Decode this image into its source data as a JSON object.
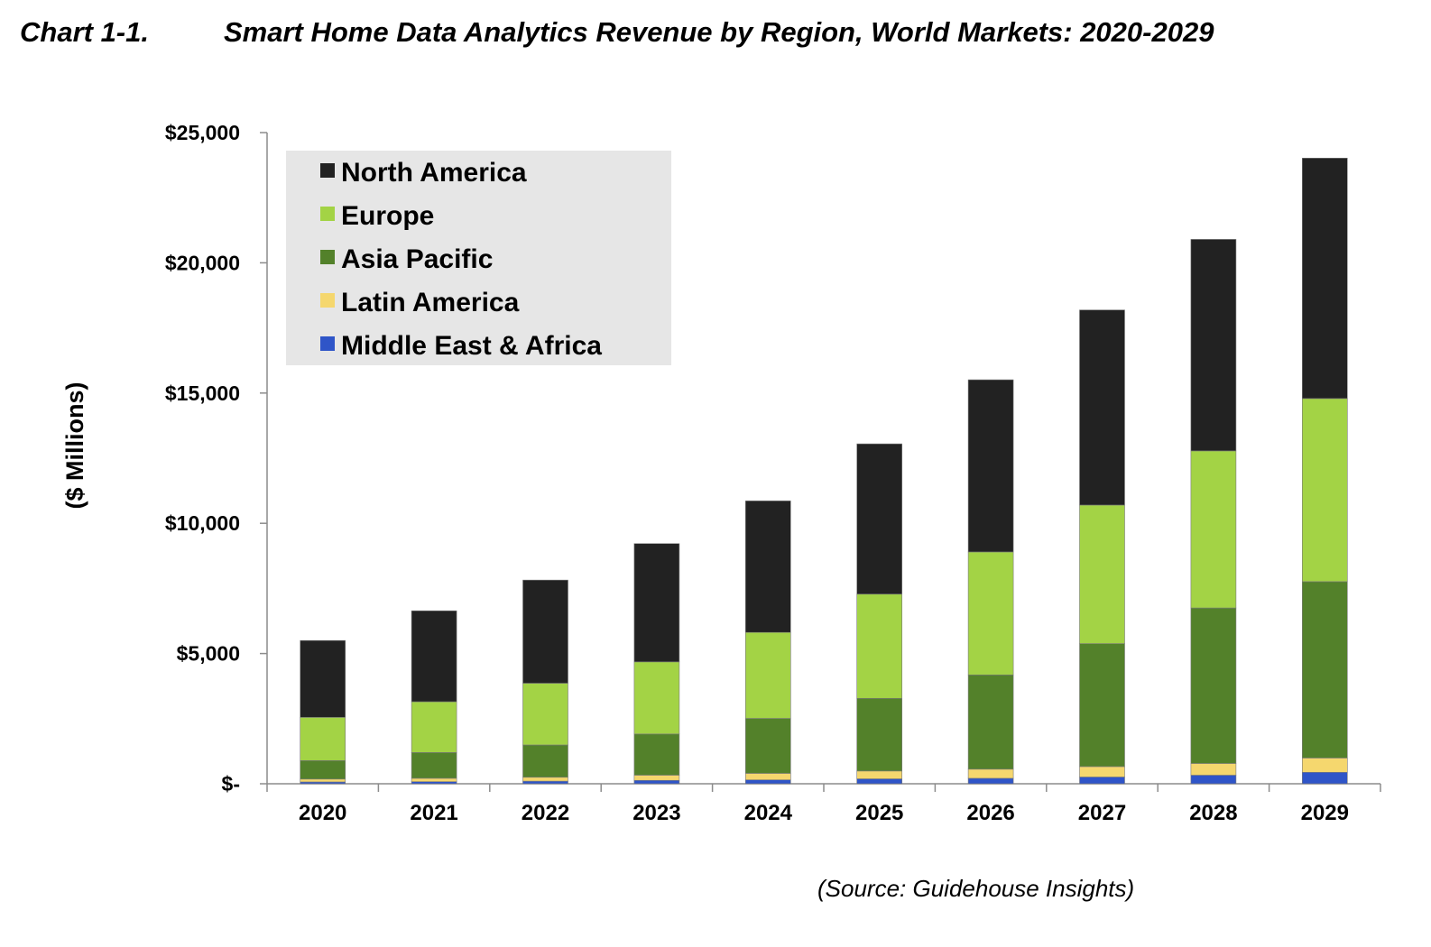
{
  "header": {
    "chart_label": "Chart 1-1.",
    "title": "Smart Home Data Analytics Revenue by Region, World Markets: 2020-2029"
  },
  "footer": {
    "source": "(Source: Guidehouse Insights)"
  },
  "chart_data": {
    "type": "bar",
    "stacked": true,
    "title": "Smart Home Data Analytics Revenue by Region, World Markets: 2020-2029",
    "xlabel": "",
    "ylabel": "($ Millions)",
    "ylim": [
      0,
      25000
    ],
    "y_ticks": [
      {
        "value": 0,
        "label": "$-"
      },
      {
        "value": 5000,
        "label": "$5,000"
      },
      {
        "value": 10000,
        "label": "$10,000"
      },
      {
        "value": 15000,
        "label": "$15,000"
      },
      {
        "value": 20000,
        "label": "$20,000"
      },
      {
        "value": 25000,
        "label": "$25,000"
      }
    ],
    "categories": [
      "2020",
      "2021",
      "2022",
      "2023",
      "2024",
      "2025",
      "2026",
      "2027",
      "2028",
      "2029"
    ],
    "legend_position": "top-left",
    "grid": false,
    "series": [
      {
        "name": "Middle East & Africa",
        "color": "#2f55c8",
        "values": [
          70,
          80,
          100,
          130,
          150,
          190,
          210,
          260,
          330,
          440
        ]
      },
      {
        "name": "Latin America",
        "color": "#f5d76e",
        "values": [
          110,
          130,
          150,
          200,
          250,
          300,
          350,
          400,
          450,
          550
        ]
      },
      {
        "name": "Asia Pacific",
        "color": "#53812a",
        "values": [
          710,
          990,
          1240,
          1580,
          2110,
          2790,
          3620,
          4720,
          5970,
          6770
        ]
      },
      {
        "name": "Europe",
        "color": "#a3d345",
        "values": [
          1660,
          1950,
          2370,
          2770,
          3300,
          4000,
          4720,
          5320,
          6030,
          7030
        ]
      },
      {
        "name": "North America",
        "color": "#222222",
        "values": [
          2950,
          3490,
          3960,
          4540,
          5050,
          5770,
          6610,
          7490,
          8120,
          9230
        ]
      }
    ],
    "legend_order": [
      "North America",
      "Europe",
      "Asia Pacific",
      "Latin America",
      "Middle East & Africa"
    ]
  }
}
